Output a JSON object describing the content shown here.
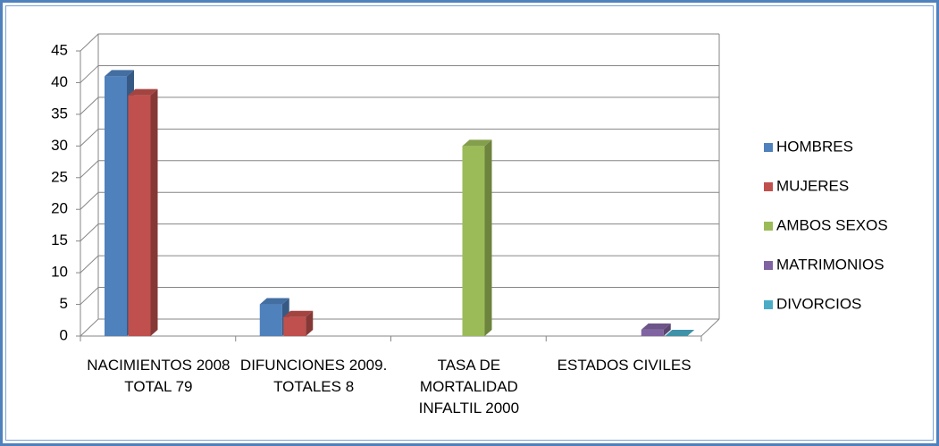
{
  "chart_data": {
    "type": "bar3d",
    "categories": [
      "NACIMIENTOS 2008 TOTAL 79",
      "DIFUNCIONES 2009. TOTALES 8",
      "TASA DE MORTALIDAD INFALTIL 2000",
      "ESTADOS CIVILES"
    ],
    "series": [
      {
        "name": "HOMBRES",
        "color": "#4f81bd",
        "values": [
          41,
          5,
          null,
          null
        ]
      },
      {
        "name": "MUJERES",
        "color": "#c0504d",
        "values": [
          38,
          3,
          null,
          null
        ]
      },
      {
        "name": "AMBOS SEXOS",
        "color": "#9bbb59",
        "values": [
          null,
          null,
          30,
          null
        ]
      },
      {
        "name": "MATRIMONIOS",
        "color": "#8064a2",
        "values": [
          null,
          null,
          null,
          1
        ]
      },
      {
        "name": "DIVORCIOS",
        "color": "#4bacc6",
        "values": [
          null,
          null,
          null,
          0
        ]
      }
    ],
    "ylim": [
      0,
      45
    ],
    "yticks": [
      0,
      5,
      10,
      15,
      20,
      25,
      30,
      35,
      40,
      45
    ],
    "grid": true,
    "legend": "right"
  }
}
